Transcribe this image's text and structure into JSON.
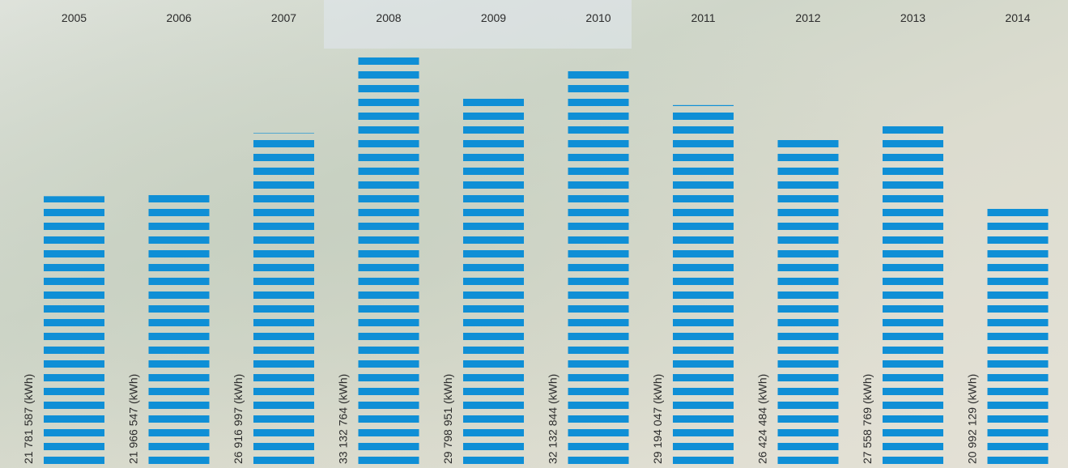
{
  "chart_data": {
    "type": "bar",
    "categories": [
      "2005",
      "2006",
      "2007",
      "2008",
      "2009",
      "2010",
      "2011",
      "2012",
      "2013",
      "2014"
    ],
    "values": [
      21781587,
      21966547,
      26916997,
      33132764,
      29798951,
      32132844,
      29194047,
      26424484,
      27558769,
      20992129
    ],
    "value_labels": [
      "21 781 587 (kWh)",
      "21 966 547 (kWh)",
      "26 916 997 (kWh)",
      "33 132 764 (kWh)",
      "29 798 951 (kWh)",
      "32 132 844 (kWh)",
      "29 194 047 (kWh)",
      "26 424 484 (kWh)",
      "27 558 769 (kWh)",
      "20 992 129 (kWh)"
    ],
    "color": "#0f8fd6"
  }
}
